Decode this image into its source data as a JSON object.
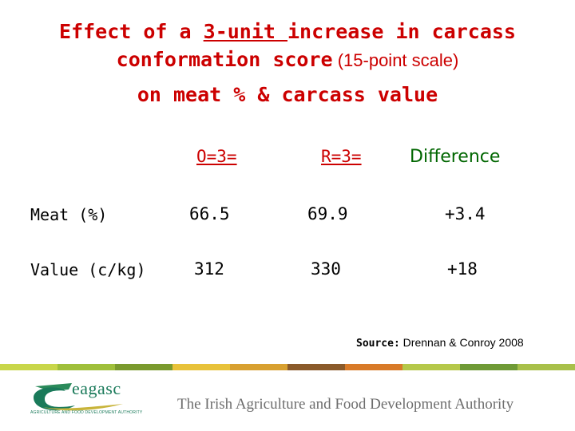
{
  "title": {
    "line1_a": "Effect of a ",
    "line1_u": "3-unit ",
    "line1_b": "increase in carcass",
    "line2_a": "conformation score",
    "line2_b": " (15-point scale)",
    "line3": "on meat % & carcass value"
  },
  "columns": [
    "O=3=",
    "R=3=",
    "Difference"
  ],
  "rows": [
    {
      "label": "Meat (%)",
      "o": "66.5",
      "r": "69.9",
      "diff": "+3.4"
    },
    {
      "label": "Value (c/kg)",
      "o": "312",
      "r": "330",
      "diff": "+18"
    }
  ],
  "source": {
    "label": "Source:",
    "text": " Drennan & Conroy 2008"
  },
  "footer": {
    "logo_text": "eagasc",
    "logo_sub": "AGRICULTURE AND FOOD DEVELOPMENT AUTHORITY",
    "tagline": "The Irish Agriculture and Food Development Authority"
  },
  "colors": {
    "title": "#cc0000",
    "difference_header": "#006600",
    "stripe": [
      "#c8d64a",
      "#9fbf3b",
      "#7a9a2e",
      "#e8c23a",
      "#d8a030",
      "#8a5a2a",
      "#d87a28",
      "#b5c84a",
      "#6f9a36",
      "#a8c04a"
    ]
  }
}
